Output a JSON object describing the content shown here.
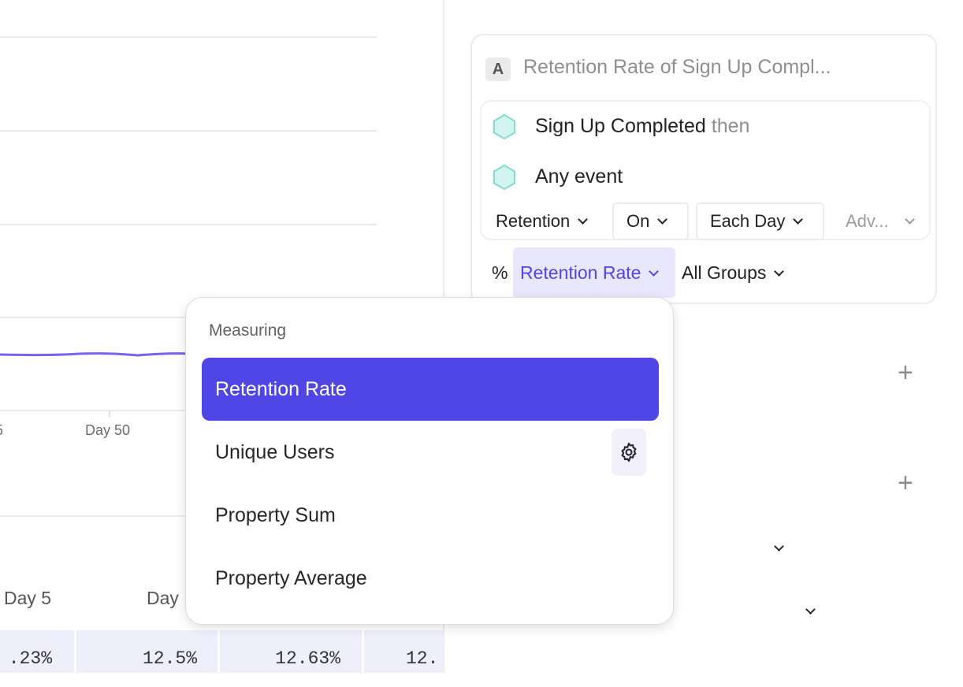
{
  "chart": {
    "x_tick_labels": [
      "5",
      "Day 50"
    ],
    "line_color": "#7b61f0"
  },
  "table": {
    "headers": [
      "Day 5",
      "Day"
    ],
    "row": [
      ".23%",
      "12.5%",
      "12.63%",
      "12."
    ]
  },
  "query": {
    "letter": "A",
    "title": "Retention Rate of Sign Up Compl...",
    "first_event": "Sign Up Completed",
    "then_label": "then",
    "second_event": "Any event",
    "retention_label": "Retention",
    "on_label": "On",
    "period_label": "Each Day",
    "advanced_label": "Adv...",
    "percent_symbol": "%",
    "measure_label": "Retention Rate",
    "groups_label": "All Groups"
  },
  "menu": {
    "heading": "Measuring",
    "items": [
      {
        "label": "Retention Rate",
        "selected": true
      },
      {
        "label": "Unique Users",
        "icon": "gear-icon"
      },
      {
        "label": "Property Sum",
        "icon": "chevron-down-icon"
      },
      {
        "label": "Property Average",
        "icon": "chevron-down-icon"
      }
    ]
  },
  "colors": {
    "accent": "#4f46e5",
    "event_hex": "#7fded0",
    "row_bg": "#efeefb"
  }
}
